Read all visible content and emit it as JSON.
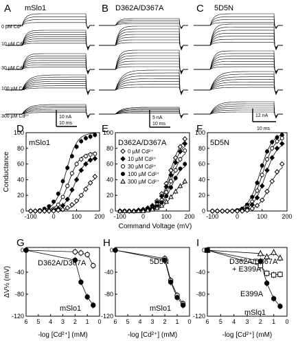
{
  "figure": {
    "traces": {
      "panels": [
        {
          "letter": "A",
          "title": "mSlo1",
          "scale_current": "10 nA",
          "scale_time": "10 ms"
        },
        {
          "letter": "B",
          "title": "D362A/D367A",
          "scale_current": "5 nA",
          "scale_time": "10 ms"
        },
        {
          "letter": "C",
          "title": "5D5N",
          "scale_current": "12 nA",
          "scale_time": "10 ms"
        }
      ],
      "conditions": [
        "0 µM Cd²⁺",
        "10 µM Cd²⁺",
        "30 µM Cd²⁺",
        "100 µM Cd²⁺",
        "300 µM Cd²⁺"
      ]
    },
    "legend_E": [
      "0 µM Cd²⁺",
      "10 µM Cd²⁺",
      "30 µM Cd²⁺",
      "100 µM Cd²⁺",
      "300 µM Cd²⁺"
    ]
  },
  "chart_data": [
    {
      "panel": "D",
      "type": "scatter",
      "title": "mSlo1",
      "ylabel": "Conductance",
      "xlabel": "",
      "xlim": [
        -120,
        200
      ],
      "ylim": [
        0,
        100
      ],
      "xticks": [
        -100,
        0,
        100,
        200
      ],
      "yticks": [
        0,
        20,
        40,
        60,
        80,
        100
      ],
      "series": [
        {
          "marker": "circle-open",
          "x": [
            -100,
            -80,
            -60,
            -40,
            -20,
            0,
            20,
            40,
            60,
            80,
            100,
            120,
            140,
            160,
            180
          ],
          "y": [
            0,
            0,
            0,
            0,
            1,
            3,
            8,
            18,
            32,
            48,
            60,
            66,
            70,
            72,
            73
          ]
        },
        {
          "marker": "diamond-filled",
          "x": [
            -100,
            -80,
            -60,
            -40,
            -20,
            0,
            20,
            40,
            60,
            80,
            100,
            120,
            140,
            160,
            180
          ],
          "y": [
            0,
            0,
            0,
            0,
            0,
            1,
            3,
            7,
            15,
            27,
            40,
            52,
            60,
            65,
            67
          ]
        },
        {
          "marker": "circle-filled",
          "x": [
            -100,
            -80,
            -60,
            -40,
            -20,
            0,
            20,
            40,
            60,
            80,
            100,
            120,
            140,
            160,
            180
          ],
          "y": [
            0,
            0,
            1,
            3,
            6,
            12,
            22,
            38,
            55,
            70,
            82,
            89,
            93,
            95,
            97
          ]
        },
        {
          "marker": "diamond-open",
          "x": [
            -100,
            -80,
            -60,
            -40,
            -20,
            0,
            20,
            40,
            60,
            80,
            100,
            120,
            140,
            160,
            180
          ],
          "y": [
            0,
            0,
            0,
            0,
            0,
            0,
            1,
            2,
            4,
            8,
            13,
            20,
            28,
            36,
            44
          ]
        }
      ]
    },
    {
      "panel": "E",
      "type": "scatter",
      "title": "D362A/D367A",
      "ylabel": "",
      "xlabel": "Command Voltage (mV)",
      "xlim": [
        -120,
        200
      ],
      "ylim": [
        0,
        100
      ],
      "xticks": [
        -100,
        0,
        100,
        200
      ],
      "yticks": [
        0,
        20,
        40,
        60,
        80,
        100
      ],
      "series": [
        {
          "marker": "diamond-open",
          "x": [
            -100,
            -80,
            -60,
            -40,
            -20,
            0,
            20,
            40,
            60,
            80,
            100,
            120,
            140,
            160,
            180
          ],
          "y": [
            0,
            0,
            0,
            0,
            1,
            2,
            4,
            7,
            13,
            22,
            35,
            52,
            68,
            82,
            92
          ]
        },
        {
          "marker": "diamond-filled",
          "x": [
            -100,
            -80,
            -60,
            -40,
            -20,
            0,
            20,
            40,
            60,
            80,
            100,
            120,
            140,
            160,
            180
          ],
          "y": [
            0,
            0,
            0,
            0,
            1,
            2,
            3,
            6,
            11,
            19,
            31,
            46,
            62,
            76,
            86
          ]
        },
        {
          "marker": "circle-open",
          "x": [
            -100,
            -80,
            -60,
            -40,
            -20,
            0,
            20,
            40,
            60,
            80,
            100,
            120,
            140,
            160,
            180
          ],
          "y": [
            0,
            0,
            0,
            0,
            0,
            1,
            2,
            4,
            8,
            14,
            24,
            38,
            52,
            66,
            77
          ]
        },
        {
          "marker": "circle-filled",
          "x": [
            -100,
            -80,
            -60,
            -40,
            -20,
            0,
            20,
            40,
            60,
            80,
            100,
            120,
            140,
            160,
            180
          ],
          "y": [
            0,
            0,
            0,
            0,
            0,
            1,
            2,
            3,
            6,
            11,
            19,
            30,
            42,
            54,
            60
          ]
        },
        {
          "marker": "triangle-open",
          "x": [
            -100,
            -80,
            -60,
            -40,
            -20,
            0,
            20,
            40,
            60,
            80,
            100,
            120,
            140,
            160,
            180
          ],
          "y": [
            0,
            0,
            0,
            0,
            0,
            0,
            1,
            2,
            4,
            7,
            12,
            18,
            25,
            32,
            38
          ]
        }
      ]
    },
    {
      "panel": "F",
      "type": "scatter",
      "title": "5D5N",
      "ylabel": "",
      "xlabel": "",
      "xlim": [
        -120,
        200
      ],
      "ylim": [
        0,
        100
      ],
      "xticks": [
        -100,
        0,
        100,
        200
      ],
      "yticks": [
        0,
        20,
        40,
        60,
        80,
        100
      ],
      "series": [
        {
          "marker": "circle-filled",
          "x": [
            -100,
            -80,
            -60,
            -40,
            -20,
            0,
            20,
            40,
            60,
            80,
            100,
            120,
            140,
            160,
            180
          ],
          "y": [
            0,
            0,
            0,
            0,
            0,
            1,
            3,
            8,
            18,
            36,
            58,
            76,
            88,
            94,
            97
          ]
        },
        {
          "marker": "circle-open",
          "x": [
            -100,
            -80,
            -60,
            -40,
            -20,
            0,
            20,
            40,
            60,
            80,
            100,
            120,
            140,
            160,
            180
          ],
          "y": [
            0,
            0,
            0,
            0,
            0,
            0,
            2,
            5,
            12,
            26,
            46,
            66,
            80,
            89,
            93
          ]
        },
        {
          "marker": "diamond-filled",
          "x": [
            -100,
            -80,
            -60,
            -40,
            -20,
            0,
            20,
            40,
            60,
            80,
            100,
            120,
            140,
            160,
            180
          ],
          "y": [
            0,
            0,
            0,
            0,
            0,
            0,
            1,
            3,
            8,
            17,
            32,
            52,
            68,
            80,
            86
          ]
        },
        {
          "marker": "diamond-open",
          "x": [
            -100,
            -80,
            -60,
            -40,
            -20,
            0,
            20,
            40,
            60,
            80,
            100,
            120,
            140,
            160,
            180
          ],
          "y": [
            0,
            0,
            0,
            0,
            0,
            0,
            0,
            1,
            3,
            7,
            14,
            25,
            38,
            50,
            60
          ]
        }
      ]
    },
    {
      "panel": "G",
      "type": "line",
      "ylabel": "ΔV½ (mV)",
      "xlabel": "-log [Cd²⁺] (mM)",
      "xlim": [
        6,
        0
      ],
      "ylim": [
        -120,
        5
      ],
      "xticks": [
        6,
        5,
        4,
        3,
        2,
        1,
        0
      ],
      "yticks": [
        0,
        -40,
        -80,
        -120
      ],
      "series": [
        {
          "name": "D362A/D367A",
          "marker": "circle-open",
          "x": [
            6,
            2,
            1.52,
            1,
            0.52
          ],
          "y": [
            0,
            -3,
            -5,
            -8,
            -28
          ]
        },
        {
          "name": "mSlo1",
          "marker": "circle-filled",
          "x": [
            6,
            2,
            1.52,
            1,
            0.52
          ],
          "y": [
            0,
            -18,
            -58,
            -85,
            -100
          ]
        }
      ]
    },
    {
      "panel": "H",
      "type": "line",
      "ylabel": "",
      "xlabel": "-log [Cd²⁺] (mM)",
      "xlim": [
        6,
        0
      ],
      "ylim": [
        -120,
        5
      ],
      "xticks": [
        6,
        5,
        4,
        3,
        2,
        1,
        0
      ],
      "yticks": [
        0,
        -40,
        -80,
        -120
      ],
      "series": [
        {
          "name": "5D5N",
          "marker": "circle-open",
          "x": [
            6,
            2,
            1.52,
            1,
            0.52
          ],
          "y": [
            0,
            -15,
            -55,
            -82,
            -97
          ]
        },
        {
          "name": "mSlo1",
          "marker": "circle-filled",
          "x": [
            6,
            2,
            1.52,
            1,
            0.52
          ],
          "y": [
            0,
            -18,
            -58,
            -86,
            -100
          ]
        }
      ]
    },
    {
      "panel": "I",
      "type": "line",
      "ylabel": "",
      "xlabel": "-log [Cd²⁺] (mM)",
      "xlim": [
        6,
        0
      ],
      "ylim": [
        -120,
        5
      ],
      "xticks": [
        6,
        5,
        4,
        3,
        2,
        1,
        0
      ],
      "yticks": [
        0,
        -40,
        -80,
        -120
      ],
      "series": [
        {
          "name": "D362A/D367A + E399A",
          "marker": "triangle-open",
          "x": [
            6,
            2,
            1.52,
            1,
            0.52
          ],
          "y": [
            0,
            -6,
            -12,
            -4,
            -14
          ]
        },
        {
          "name": "E399A",
          "marker": "square-open",
          "x": [
            6,
            2,
            1.52,
            1,
            0.52
          ],
          "y": [
            0,
            -28,
            -42,
            -45,
            -44
          ]
        },
        {
          "name": "mSlo1",
          "marker": "circle-filled",
          "x": [
            6,
            2,
            1.52,
            1,
            0.52
          ],
          "y": [
            0,
            -20,
            -60,
            -88,
            -102
          ]
        }
      ]
    }
  ]
}
